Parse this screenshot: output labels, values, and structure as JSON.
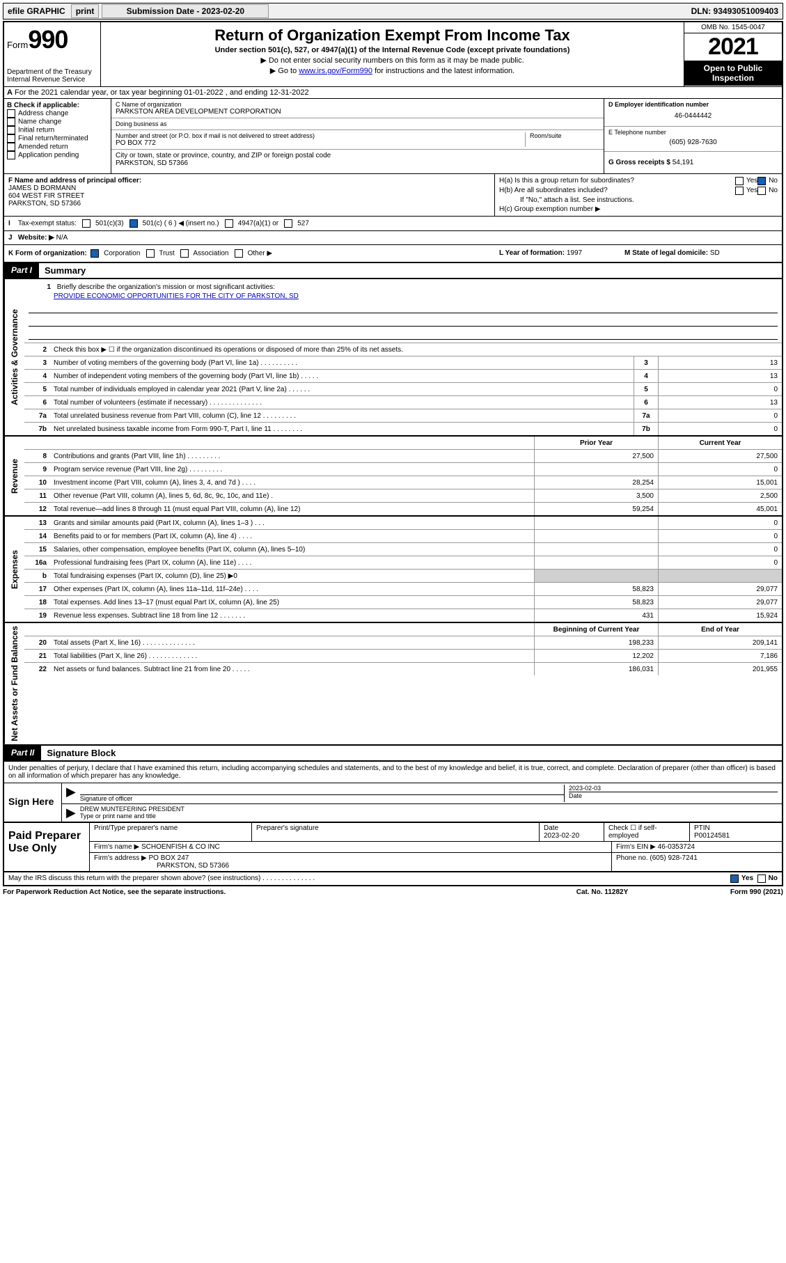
{
  "topbar": {
    "efile": "efile GRAPHIC",
    "print": "print",
    "sub_date_label": "Submission Date - 2023-02-20",
    "dln": "DLN: 93493051009403"
  },
  "header": {
    "form_label": "Form",
    "form_num": "990",
    "dept": "Department of the Treasury",
    "irs": "Internal Revenue Service",
    "title": "Return of Organization Exempt From Income Tax",
    "subtitle": "Under section 501(c), 527, or 4947(a)(1) of the Internal Revenue Code (except private foundations)",
    "note1": "▶ Do not enter social security numbers on this form as it may be made public.",
    "note2_pre": "▶ Go to ",
    "note2_link": "www.irs.gov/Form990",
    "note2_post": " for instructions and the latest information.",
    "omb": "OMB No. 1545-0047",
    "year": "2021",
    "inspect": "Open to Public Inspection"
  },
  "row_a": "For the 2021 calendar year, or tax year beginning 01-01-2022   , and ending 12-31-2022",
  "section_b": {
    "header": "B Check if applicable:",
    "items": [
      "Address change",
      "Name change",
      "Initial return",
      "Final return/terminated",
      "Amended return",
      "Application pending"
    ]
  },
  "section_c": {
    "name_hdr": "C Name of organization",
    "name": "PARKSTON AREA DEVELOPMENT CORPORATION",
    "dba_hdr": "Doing business as",
    "dba": "",
    "addr_hdr": "Number and street (or P.O. box if mail is not delivered to street address)",
    "room_hdr": "Room/suite",
    "addr": "PO BOX 772",
    "city_hdr": "City or town, state or province, country, and ZIP or foreign postal code",
    "city": "PARKSTON, SD  57366"
  },
  "section_d": {
    "ein_hdr": "D Employer identification number",
    "ein": "46-0444442",
    "tel_hdr": "E Telephone number",
    "tel": "(605) 928-7630",
    "gross_hdr": "G Gross receipts $",
    "gross": "54,191"
  },
  "section_f": {
    "hdr": "F Name and address of principal officer:",
    "name": "JAMES D BORMANN",
    "addr1": "604 WEST FIR STREET",
    "addr2": "PARKSTON, SD  57366"
  },
  "section_h": {
    "ha": "H(a)  Is this a group return for subordinates?",
    "hb": "H(b)  Are all subordinates included?",
    "hb_note": "If \"No,\" attach a list. See instructions.",
    "hc": "H(c)  Group exemption number ▶",
    "yes": "Yes",
    "no": "No"
  },
  "section_i": {
    "label": "Tax-exempt status:",
    "c3": "501(c)(3)",
    "c": "501(c) ( 6 ) ◀ (insert no.)",
    "a1": "4947(a)(1) or",
    "s527": "527"
  },
  "section_j": {
    "label": "Website: ▶",
    "val": "N/A"
  },
  "section_k": {
    "label": "K Form of organization:",
    "corp": "Corporation",
    "trust": "Trust",
    "assoc": "Association",
    "other": "Other ▶"
  },
  "section_l": {
    "label": "L Year of formation:",
    "val": "1997"
  },
  "section_m": {
    "label": "M State of legal domicile:",
    "val": "SD"
  },
  "part1": {
    "tag": "Part I",
    "title": "Summary"
  },
  "gov": {
    "q1": "Briefly describe the organization's mission or most significant activities:",
    "mission": "PROVIDE ECONOMIC OPPORTUNITIES FOR THE CITY OF PARKSTON, SD",
    "q2": "Check this box ▶ ☐  if the organization discontinued its operations or disposed of more than 25% of its net assets.",
    "lines": [
      {
        "n": "3",
        "d": "Number of voting members of the governing body (Part VI, line 1a)  .   .   .   .   .   .   .   .   .   .",
        "v": "13"
      },
      {
        "n": "4",
        "d": "Number of independent voting members of the governing body (Part VI, line 1b)  .   .   .   .   .",
        "v": "13"
      },
      {
        "n": "5",
        "d": "Total number of individuals employed in calendar year 2021 (Part V, line 2a)  .   .   .   .   .   .",
        "v": "0"
      },
      {
        "n": "6",
        "d": "Total number of volunteers (estimate if necessary)  .   .   .   .   .   .   .   .   .   .   .   .   .   .",
        "v": "13"
      },
      {
        "n": "7a",
        "d": "Total unrelated business revenue from Part VIII, column (C), line 12  .   .   .   .   .   .   .   .   .",
        "v": "0"
      },
      {
        "n": "7b",
        "d": "Net unrelated business taxable income from Form 990-T, Part I, line 11  .   .   .   .   .   .   .   .",
        "v": "0"
      }
    ]
  },
  "yearcols": {
    "prior": "Prior Year",
    "current": "Current Year",
    "boy": "Beginning of Current Year",
    "eoy": "End of Year"
  },
  "rev": [
    {
      "n": "8",
      "d": "Contributions and grants (Part VIII, line 1h)  .   .   .   .   .   .   .   .   .",
      "p": "27,500",
      "c": "27,500"
    },
    {
      "n": "9",
      "d": "Program service revenue (Part VIII, line 2g)  .   .   .   .   .   .   .   .   .",
      "p": "",
      "c": "0"
    },
    {
      "n": "10",
      "d": "Investment income (Part VIII, column (A), lines 3, 4, and 7d )  .   .   .   .",
      "p": "28,254",
      "c": "15,001"
    },
    {
      "n": "11",
      "d": "Other revenue (Part VIII, column (A), lines 5, 6d, 8c, 9c, 10c, and 11e)   .",
      "p": "3,500",
      "c": "2,500"
    },
    {
      "n": "12",
      "d": "Total revenue—add lines 8 through 11 (must equal Part VIII, column (A), line 12)",
      "p": "59,254",
      "c": "45,001"
    }
  ],
  "exp": [
    {
      "n": "13",
      "d": "Grants and similar amounts paid (Part IX, column (A), lines 1–3 )  .   .   .",
      "p": "",
      "c": "0"
    },
    {
      "n": "14",
      "d": "Benefits paid to or for members (Part IX, column (A), line 4)  .   .   .   .",
      "p": "",
      "c": "0"
    },
    {
      "n": "15",
      "d": "Salaries, other compensation, employee benefits (Part IX, column (A), lines 5–10)",
      "p": "",
      "c": "0"
    },
    {
      "n": "16a",
      "d": "Professional fundraising fees (Part IX, column (A), line 11e)  .   .   .   .",
      "p": "",
      "c": "0"
    },
    {
      "n": "b",
      "d": "Total fundraising expenses (Part IX, column (D), line 25) ▶0",
      "p": "shade",
      "c": "shade"
    },
    {
      "n": "17",
      "d": "Other expenses (Part IX, column (A), lines 11a–11d, 11f–24e)  .   .   .   .",
      "p": "58,823",
      "c": "29,077"
    },
    {
      "n": "18",
      "d": "Total expenses. Add lines 13–17 (must equal Part IX, column (A), line 25)",
      "p": "58,823",
      "c": "29,077"
    },
    {
      "n": "19",
      "d": "Revenue less expenses. Subtract line 18 from line 12  .   .   .   .   .   .   .",
      "p": "431",
      "c": "15,924"
    }
  ],
  "net": [
    {
      "n": "20",
      "d": "Total assets (Part X, line 16)  .   .   .   .   .   .   .   .   .   .   .   .   .   .",
      "p": "198,233",
      "c": "209,141"
    },
    {
      "n": "21",
      "d": "Total liabilities (Part X, line 26)  .   .   .   .   .   .   .   .   .   .   .   .   .",
      "p": "12,202",
      "c": "7,186"
    },
    {
      "n": "22",
      "d": "Net assets or fund balances. Subtract line 21 from line 20  .   .   .   .   .",
      "p": "186,031",
      "c": "201,955"
    }
  ],
  "vlabels": {
    "gov": "Activities & Governance",
    "rev": "Revenue",
    "exp": "Expenses",
    "net": "Net Assets or Fund Balances"
  },
  "part2": {
    "tag": "Part II",
    "title": "Signature Block"
  },
  "sig": {
    "decl": "Under penalties of perjury, I declare that I have examined this return, including accompanying schedules and statements, and to the best of my knowledge and belief, it is true, correct, and complete. Declaration of preparer (other than officer) is based on all information of which preparer has any knowledge.",
    "here": "Sign Here",
    "sig_label": "Signature of officer",
    "date_label": "Date",
    "date": "2023-02-03",
    "name": "DREW MUNTEFERING PRESIDENT",
    "name_label": "Type or print name and title"
  },
  "prep": {
    "title": "Paid Preparer Use Only",
    "h_name": "Print/Type preparer's name",
    "h_sig": "Preparer's signature",
    "h_date": "Date",
    "date": "2023-02-20",
    "h_check": "Check ☐ if self-employed",
    "h_ptin": "PTIN",
    "ptin": "P00124581",
    "firm_name_l": "Firm's name    ▶",
    "firm_name": "SCHOENFISH & CO INC",
    "firm_ein_l": "Firm's EIN ▶",
    "firm_ein": "46-0353724",
    "firm_addr_l": "Firm's address ▶",
    "firm_addr1": "PO BOX 247",
    "firm_addr2": "PARKSTON, SD  57366",
    "phone_l": "Phone no.",
    "phone": "(605) 928-7241"
  },
  "footer": {
    "discuss": "May the IRS discuss this return with the preparer shown above? (see instructions)  .   .   .   .   .   .   .   .   .   .   .   .   .   .",
    "yes": "Yes",
    "no": "No",
    "paperwork": "For Paperwork Reduction Act Notice, see the separate instructions.",
    "cat": "Cat. No. 11282Y",
    "formref": "Form 990 (2021)"
  }
}
